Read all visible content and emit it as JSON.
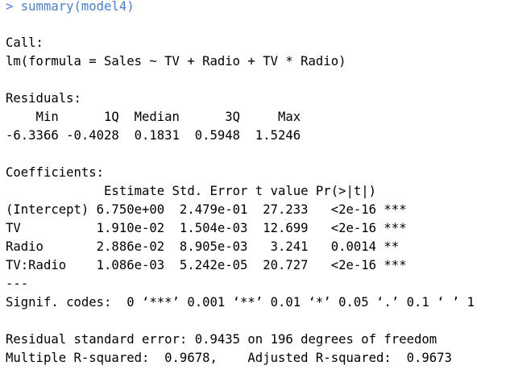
{
  "console": {
    "command": "> summary(model4)",
    "call_header": "Call:",
    "call": "lm(formula = Sales ~ TV + Radio + TV * Radio)",
    "residuals_header": "Residuals:",
    "residuals_cols": "    Min      1Q  Median      3Q     Max ",
    "residuals_vals": "-6.3366 -0.4028  0.1831  0.5948  1.5246 ",
    "coefficients_header": "Coefficients:",
    "coef_cols": "             Estimate Std. Error t value Pr(>|t|)    ",
    "coef_rows": [
      "(Intercept) 6.750e+00  2.479e-01  27.233   <2e-16 ***",
      "TV          1.910e-02  1.504e-03  12.699   <2e-16 ***",
      "Radio       2.886e-02  8.905e-03   3.241   0.0014 ** ",
      "TV:Radio    1.086e-03  5.242e-05  20.727   <2e-16 ***"
    ],
    "separator": "---",
    "signif": "Signif. codes:  0 ‘***’ 0.001 ‘**’ 0.01 ‘*’ 0.05 ‘.’ 0.1 ‘ ’ 1",
    "rse": "Residual standard error: 0.9435 on 196 degrees of freedom",
    "r_squared": "Multiple R-squared:  0.9678,    Adjusted R-squared:  0.9673 "
  },
  "colors": {
    "command": "#4a7fd1",
    "text": "#000000",
    "background": "#ffffff"
  }
}
